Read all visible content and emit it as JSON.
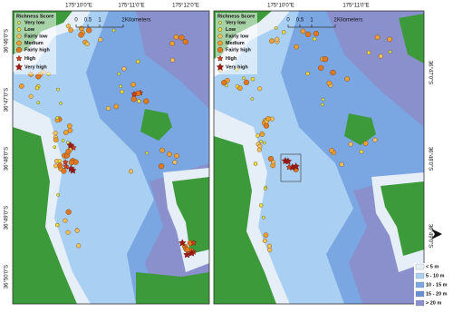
{
  "panels": [
    {
      "lon_labels": [
        "175°10'0\"E",
        "175°11'0\"E",
        "175°12'0\"E"
      ],
      "lat_labels": [
        "36°46'0\"S",
        "36°47'0\"S",
        "36°48'0\"S",
        "36°49'0\"S",
        "36°50'0\"S"
      ],
      "legend": {
        "title": "Richness Score",
        "items": [
          "Very low",
          "Low",
          "Fairly low",
          "Medium",
          "Fairly high",
          "High",
          "Very high"
        ]
      },
      "scale": {
        "ticks": [
          "0",
          "0.5",
          "1",
          "2"
        ],
        "unit": "Kilometers"
      }
    },
    {
      "lon_labels": [
        "175°10'0\"E",
        "175°11'0\"E"
      ],
      "lat_labels": [
        "36°47'0\"S",
        "36°48'0\"S",
        "36°49'0\"S"
      ],
      "legend": {
        "title": "Richness Score",
        "items": [
          "Very low",
          "Low",
          "Fairly low",
          "Medium",
          "Fairly high",
          "High",
          "Very high"
        ]
      },
      "scale": {
        "ticks": [
          "0",
          "0.5",
          "1",
          "2"
        ],
        "unit": "Kilometers"
      }
    }
  ],
  "depth_legend": {
    "items": [
      "< 5 m",
      "5 - 10 m",
      "10 - 15 m",
      "15 - 20 m",
      "> 20 m"
    ]
  },
  "north": "N"
}
